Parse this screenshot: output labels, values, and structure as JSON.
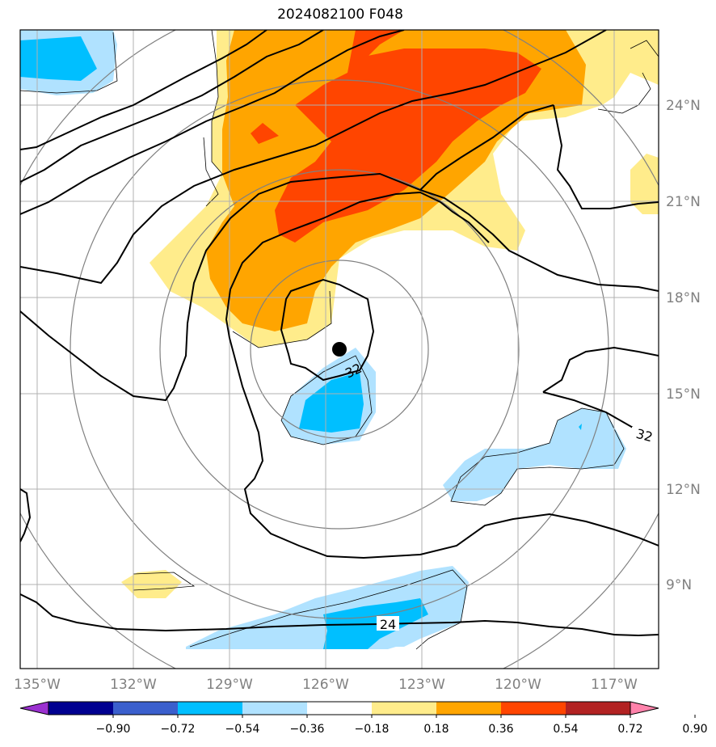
{
  "title": "2024082100 F048",
  "lon_ticks": [
    "135°W",
    "132°W",
    "129°W",
    "126°W",
    "123°W",
    "120°W",
    "117°W"
  ],
  "lat_ticks": [
    "24°N",
    "21°N",
    "18°N",
    "15°N",
    "12°N",
    "9°N"
  ],
  "contour_labels": [
    "32",
    "32",
    "24"
  ],
  "colorbar": {
    "tick_labels": [
      "−0.90",
      "−0.72",
      "−0.54",
      "−0.36",
      "−0.18",
      "0.18",
      "0.36",
      "0.54",
      "0.72",
      "0.90"
    ],
    "colors": [
      "#9b30d0",
      "#000090",
      "#3a5fcd",
      "#00bfff",
      "#b0e2ff",
      "#ffffff",
      "#ffec8b",
      "#ffa500",
      "#ff4500",
      "#b22222",
      "#ff82ab"
    ]
  },
  "storm_center_marker": "black-dot"
}
